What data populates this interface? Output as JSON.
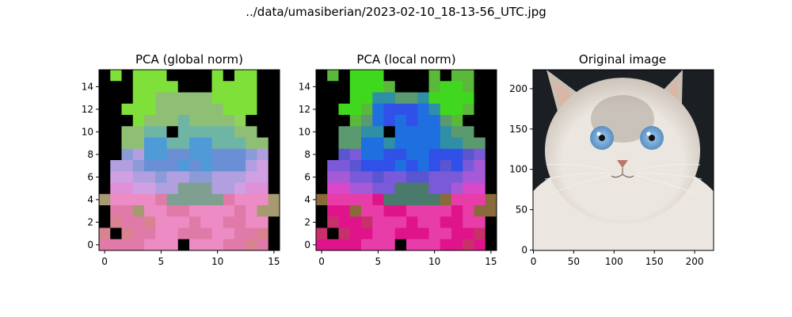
{
  "figure": {
    "suptitle": "../data/umasiberian/2023-02-10_18-13-56_UTC.jpg"
  },
  "chart_data": [
    {
      "type": "heatmap",
      "title": "PCA (global norm)",
      "grid_size": [
        16,
        16
      ],
      "xlim": [
        -0.5,
        15.5
      ],
      "ylim": [
        15.5,
        -0.5
      ],
      "xticks": [
        0,
        5,
        10,
        15
      ],
      "yticks": [
        0,
        2,
        4,
        6,
        8,
        10,
        12,
        14
      ],
      "grid": false,
      "palette": {
        "0": "#000000",
        "1": "#7fe03a",
        "2": "#8ed45c",
        "3": "#8fbf74",
        "4": "#6fb5a6",
        "5": "#4f9bd8",
        "6": "#6a8fd4",
        "7": "#8b9bd8",
        "8": "#b19fe0",
        "9": "#cfa1e3",
        "10": "#e090d6",
        "11": "#ec8bc4",
        "12": "#e07aa8",
        "13": "#d8838f",
        "14": "#a69a70",
        "15": "#7fa090"
      },
      "cells": [
        [
          0,
          1,
          0,
          1,
          1,
          1,
          0,
          0,
          0,
          0,
          1,
          0,
          1,
          1,
          0,
          0
        ],
        [
          0,
          0,
          0,
          1,
          1,
          1,
          1,
          0,
          0,
          0,
          1,
          1,
          1,
          1,
          0,
          0
        ],
        [
          0,
          0,
          0,
          1,
          1,
          3,
          3,
          3,
          3,
          3,
          1,
          1,
          1,
          1,
          0,
          0
        ],
        [
          0,
          0,
          1,
          1,
          1,
          3,
          3,
          3,
          3,
          3,
          3,
          1,
          1,
          1,
          0,
          0
        ],
        [
          0,
          0,
          0,
          1,
          3,
          3,
          3,
          4,
          3,
          3,
          3,
          3,
          2,
          0,
          0,
          0
        ],
        [
          0,
          0,
          3,
          3,
          4,
          4,
          0,
          4,
          4,
          4,
          4,
          4,
          3,
          3,
          0,
          0
        ],
        [
          0,
          0,
          3,
          3,
          5,
          5,
          4,
          4,
          5,
          5,
          4,
          4,
          4,
          3,
          3,
          0
        ],
        [
          0,
          0,
          7,
          8,
          5,
          5,
          6,
          6,
          5,
          5,
          6,
          6,
          6,
          7,
          8,
          0
        ],
        [
          0,
          8,
          8,
          7,
          6,
          6,
          6,
          5,
          6,
          5,
          6,
          6,
          6,
          8,
          9,
          0
        ],
        [
          0,
          9,
          9,
          8,
          8,
          7,
          8,
          8,
          7,
          7,
          8,
          8,
          8,
          9,
          9,
          0
        ],
        [
          0,
          10,
          10,
          9,
          9,
          8,
          8,
          15,
          15,
          15,
          8,
          8,
          9,
          10,
          10,
          0
        ],
        [
          14,
          11,
          11,
          11,
          11,
          12,
          15,
          15,
          15,
          15,
          15,
          12,
          11,
          11,
          11,
          14
        ],
        [
          0,
          12,
          12,
          14,
          11,
          11,
          12,
          12,
          11,
          11,
          11,
          11,
          12,
          11,
          14,
          14
        ],
        [
          0,
          13,
          12,
          12,
          13,
          11,
          11,
          11,
          12,
          11,
          11,
          12,
          12,
          11,
          11,
          0
        ],
        [
          13,
          0,
          13,
          12,
          12,
          11,
          11,
          12,
          12,
          12,
          11,
          11,
          12,
          12,
          13,
          0
        ],
        [
          12,
          12,
          12,
          12,
          11,
          11,
          11,
          0,
          11,
          11,
          11,
          12,
          12,
          13,
          12,
          0
        ]
      ]
    },
    {
      "type": "heatmap",
      "title": "PCA (local norm)",
      "grid_size": [
        16,
        16
      ],
      "xlim": [
        -0.5,
        15.5
      ],
      "ylim": [
        15.5,
        -0.5
      ],
      "xticks": [
        0,
        5,
        10,
        15
      ],
      "yticks": [
        0,
        2,
        4,
        6,
        8,
        10,
        12,
        14
      ],
      "grid": false,
      "palette": {
        "0": "#000000",
        "1": "#3fd81e",
        "2": "#5ab83a",
        "3": "#5a9a6e",
        "4": "#2f8fa6",
        "5": "#1f6fe0",
        "6": "#3050e8",
        "7": "#5a55d0",
        "8": "#7a5ad8",
        "9": "#a65ad8",
        "10": "#d848c8",
        "11": "#e83ca8",
        "12": "#e0148a",
        "13": "#c8306a",
        "14": "#8a6a3a",
        "15": "#4a7a6a"
      },
      "cells": [
        [
          0,
          2,
          0,
          1,
          1,
          1,
          0,
          0,
          0,
          0,
          2,
          0,
          2,
          2,
          0,
          0
        ],
        [
          0,
          0,
          0,
          1,
          1,
          1,
          2,
          0,
          0,
          0,
          2,
          1,
          1,
          2,
          0,
          0
        ],
        [
          0,
          0,
          0,
          1,
          1,
          4,
          4,
          3,
          3,
          4,
          1,
          1,
          1,
          1,
          0,
          0
        ],
        [
          0,
          0,
          1,
          1,
          2,
          5,
          6,
          6,
          6,
          5,
          4,
          1,
          1,
          2,
          0,
          0
        ],
        [
          0,
          0,
          0,
          2,
          3,
          5,
          6,
          5,
          6,
          5,
          5,
          3,
          2,
          0,
          0,
          0
        ],
        [
          0,
          0,
          3,
          3,
          4,
          4,
          0,
          5,
          5,
          5,
          5,
          4,
          3,
          3,
          0,
          0
        ],
        [
          0,
          0,
          3,
          3,
          5,
          5,
          4,
          5,
          5,
          5,
          5,
          4,
          4,
          3,
          3,
          0
        ],
        [
          0,
          0,
          7,
          8,
          5,
          5,
          6,
          6,
          5,
          5,
          6,
          6,
          6,
          7,
          8,
          0
        ],
        [
          0,
          8,
          8,
          7,
          6,
          6,
          6,
          5,
          6,
          5,
          6,
          7,
          6,
          8,
          9,
          0
        ],
        [
          0,
          9,
          9,
          8,
          8,
          7,
          8,
          8,
          7,
          7,
          8,
          8,
          8,
          9,
          9,
          0
        ],
        [
          0,
          10,
          10,
          9,
          9,
          8,
          8,
          15,
          15,
          15,
          8,
          8,
          9,
          10,
          10,
          0
        ],
        [
          14,
          11,
          11,
          11,
          11,
          12,
          15,
          15,
          15,
          15,
          15,
          14,
          11,
          11,
          11,
          14
        ],
        [
          0,
          12,
          12,
          14,
          11,
          11,
          12,
          12,
          11,
          11,
          11,
          11,
          12,
          11,
          14,
          14
        ],
        [
          0,
          13,
          12,
          12,
          13,
          11,
          11,
          11,
          12,
          11,
          11,
          12,
          12,
          11,
          11,
          0
        ],
        [
          13,
          0,
          13,
          12,
          12,
          11,
          11,
          12,
          12,
          12,
          11,
          11,
          12,
          12,
          13,
          0
        ],
        [
          12,
          12,
          12,
          12,
          11,
          11,
          11,
          0,
          11,
          11,
          11,
          12,
          12,
          13,
          12,
          0
        ]
      ]
    },
    {
      "type": "image",
      "title": "Original image",
      "xlim": [
        -0.5,
        223.5
      ],
      "ylim": [
        223.5,
        -0.5
      ],
      "xticks": [
        0,
        50,
        100,
        150,
        200
      ],
      "yticks": [
        0,
        50,
        100,
        150,
        200
      ],
      "grid": false,
      "content": "cat photo",
      "colors": {
        "background": "#1b1e22",
        "fur_light": "#ebe6e0",
        "fur_mid": "#c9bfb5",
        "fur_dark": "#8a7e73",
        "ear_inner": "#d9b7a4",
        "eye_outer": "#5a8fc2",
        "eye_inner": "#9ccaee",
        "pupil": "#111111",
        "nose": "#b8796c"
      }
    }
  ]
}
